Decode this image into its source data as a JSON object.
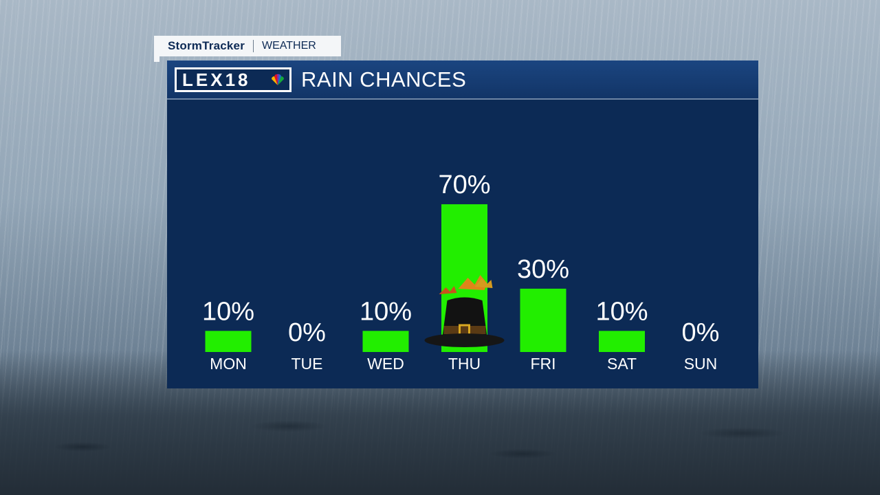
{
  "tag": {
    "brand": "StormTracker",
    "section": "WEATHER"
  },
  "header": {
    "logo_text": "LEX18",
    "title": "RAIN CHANCES"
  },
  "colors": {
    "bar": "#22ee00",
    "panel": "#0c2a55",
    "header": "#123567"
  },
  "chart_data": {
    "type": "bar",
    "title": "RAIN CHANCES",
    "categories": [
      "MON",
      "TUE",
      "WED",
      "THU",
      "FRI",
      "SAT",
      "SUN"
    ],
    "values": [
      10,
      0,
      10,
      70,
      30,
      10,
      0
    ],
    "value_labels": [
      "10%",
      "0%",
      "10%",
      "70%",
      "30%",
      "10%",
      "0%"
    ],
    "ylim": [
      0,
      100
    ],
    "grid": false,
    "legend": "none",
    "annotations": [
      {
        "category": "THU",
        "icon": "pilgrim-hat-icon"
      }
    ]
  }
}
